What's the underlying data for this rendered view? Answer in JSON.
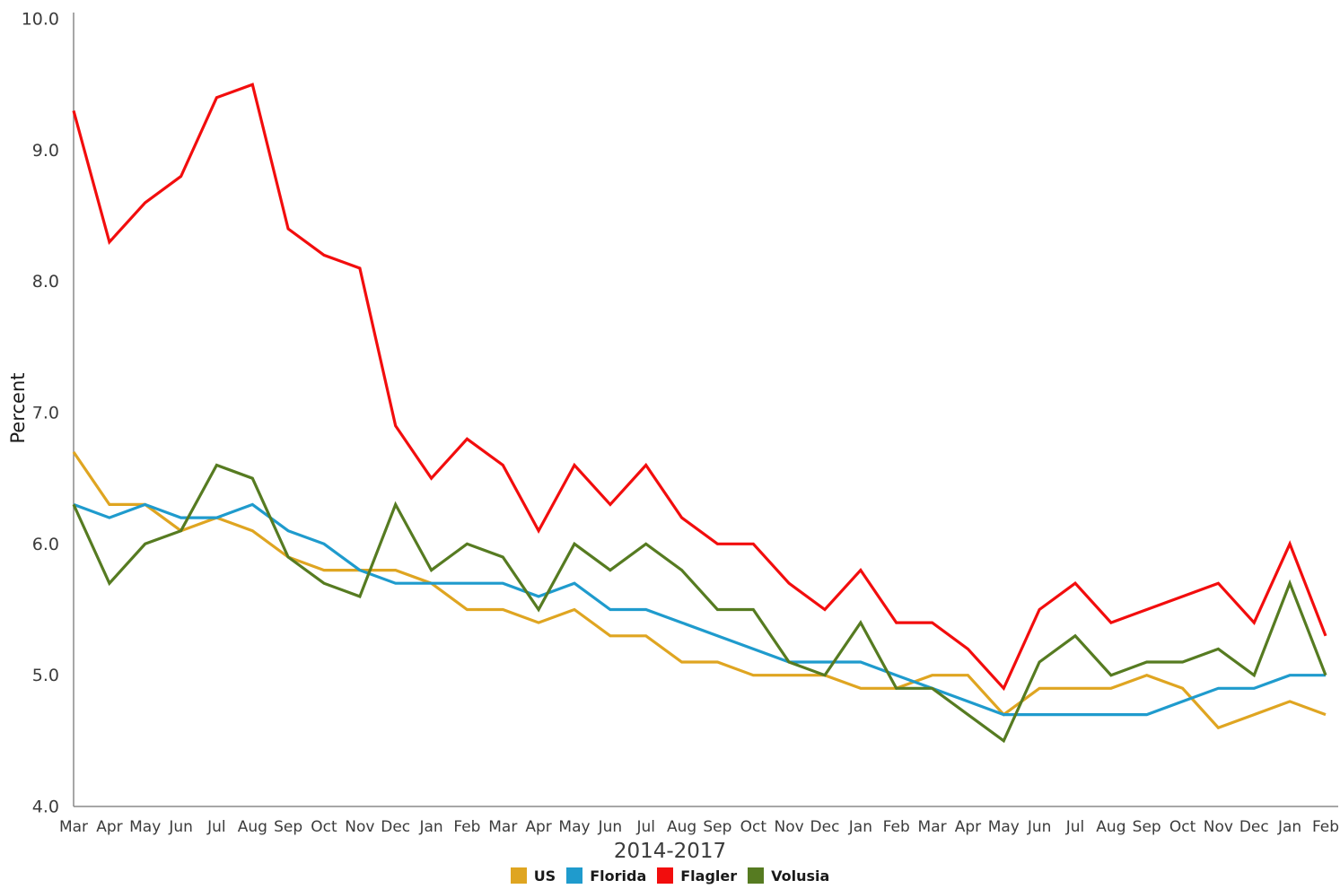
{
  "chart": {
    "y_axis_label": "Percent",
    "x_axis_title": "2014-2017"
  },
  "chart_data": {
    "type": "line",
    "title": "2014-2017",
    "xlabel": "2014-2017",
    "ylabel": "Percent",
    "ylim": [
      4.0,
      10.0
    ],
    "yticks": [
      4.0,
      5.0,
      6.0,
      7.0,
      8.0,
      9.0,
      10.0
    ],
    "ytick_labels": [
      "4.0",
      "5.0",
      "6.0",
      "7.0",
      "8.0",
      "9.0",
      "10.0"
    ],
    "grid": false,
    "legend_position": "bottom",
    "axis_color": "#8a8a8a",
    "text_color": "#3b3b3b",
    "x": [
      "Mar",
      "Apr",
      "May",
      "Jun",
      "Jul",
      "Aug",
      "Sep",
      "Oct",
      "Nov",
      "Dec",
      "Jan",
      "Feb",
      "Mar",
      "Apr",
      "May",
      "Jun",
      "Jul",
      "Aug",
      "Sep",
      "Oct",
      "Nov",
      "Dec",
      "Jan",
      "Feb",
      "Mar",
      "Apr",
      "May",
      "Jun",
      "Jul",
      "Aug",
      "Sep",
      "Oct",
      "Nov",
      "Dec",
      "Jan",
      "Feb"
    ],
    "x_year_span": [
      "Mar 2014",
      "Feb 2017"
    ],
    "series": [
      {
        "name": "US",
        "color": "#DFA521",
        "values": [
          6.7,
          6.3,
          6.3,
          6.1,
          6.2,
          6.1,
          5.9,
          5.8,
          5.8,
          5.8,
          5.7,
          5.5,
          5.5,
          5.4,
          5.5,
          5.3,
          5.3,
          5.1,
          5.1,
          5.0,
          5.0,
          5.0,
          4.9,
          4.9,
          5.0,
          5.0,
          4.7,
          4.9,
          4.9,
          4.9,
          5.0,
          4.9,
          4.6,
          4.7,
          4.8,
          4.7
        ]
      },
      {
        "name": "Florida",
        "color": "#1F9BCD",
        "values": [
          6.3,
          6.2,
          6.3,
          6.2,
          6.2,
          6.3,
          6.1,
          6.0,
          5.8,
          5.7,
          5.7,
          5.7,
          5.7,
          5.6,
          5.7,
          5.5,
          5.5,
          5.4,
          5.3,
          5.2,
          5.1,
          5.1,
          5.1,
          5.0,
          4.9,
          4.8,
          4.7,
          4.7,
          4.7,
          4.7,
          4.7,
          4.8,
          4.9,
          4.9,
          5.0,
          5.0
        ]
      },
      {
        "name": "Flagler",
        "color": "#F20D0D",
        "values": [
          9.3,
          8.3,
          8.6,
          8.8,
          9.4,
          9.5,
          8.4,
          8.2,
          8.1,
          6.9,
          6.5,
          6.8,
          6.6,
          6.1,
          6.6,
          6.3,
          6.6,
          6.2,
          6.0,
          6.0,
          5.7,
          5.5,
          5.8,
          5.4,
          5.4,
          5.2,
          4.9,
          5.5,
          5.7,
          5.4,
          5.5,
          5.6,
          5.7,
          5.4,
          6.0,
          5.3
        ]
      },
      {
        "name": "Volusia",
        "color": "#567B21",
        "values": [
          6.3,
          5.7,
          6.0,
          6.1,
          6.6,
          6.5,
          5.9,
          5.7,
          5.6,
          6.3,
          5.8,
          6.0,
          5.9,
          5.5,
          6.0,
          5.8,
          6.0,
          5.8,
          5.5,
          5.5,
          5.1,
          5.0,
          5.4,
          4.9,
          4.9,
          4.7,
          4.5,
          5.1,
          5.3,
          5.0,
          5.1,
          5.1,
          5.2,
          5.0,
          5.7,
          5.0
        ]
      }
    ]
  }
}
